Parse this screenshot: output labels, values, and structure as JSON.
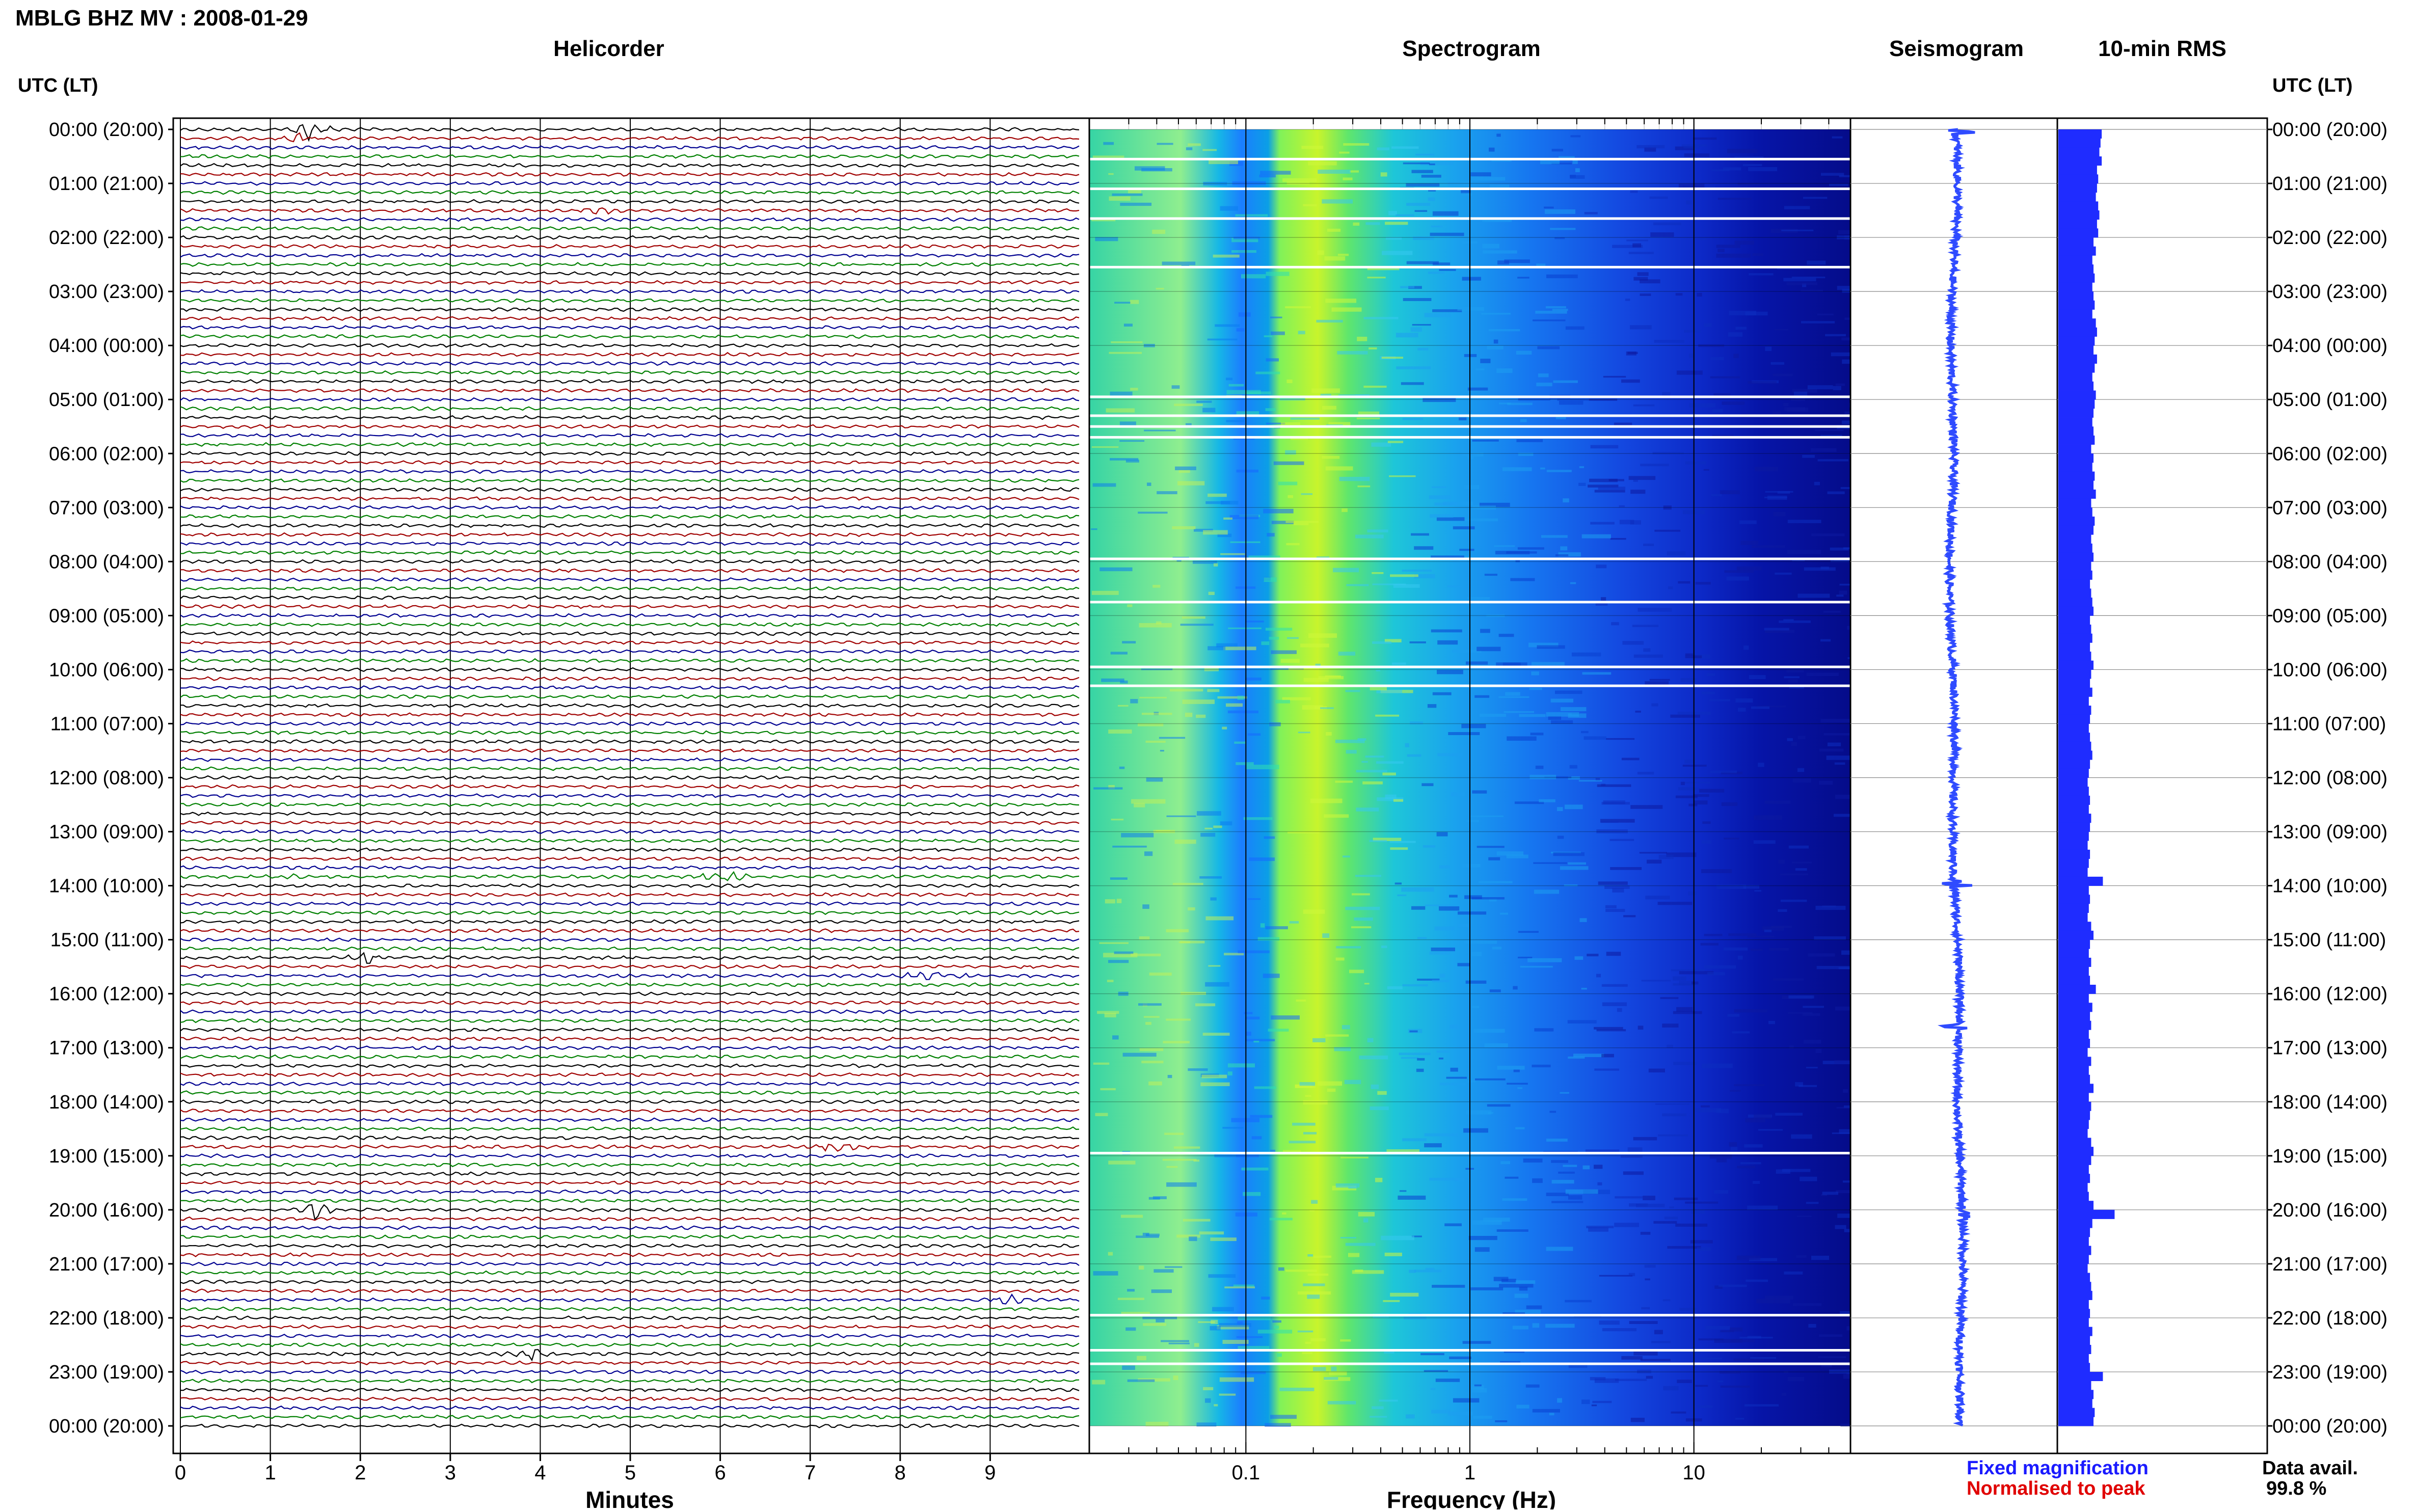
{
  "page": {
    "title": "MBLG BHZ MV : 2008-01-29",
    "utc_header": "UTC (LT)",
    "footer_fixed": "Fixed magnification",
    "footer_normalised": "Normalised to peak",
    "data_avail_label": "Data avail.",
    "data_avail_value": "99.8 %"
  },
  "colors": {
    "trace_cycle": [
      "#000000",
      "#a00000",
      "#000090",
      "#008000"
    ],
    "fixed_text": "#1a1aff",
    "normalised_text": "#e00000",
    "bar": "#1f2cff",
    "seis": "#2f4bff"
  },
  "chart_data": [
    {
      "type": "helicorder",
      "title": "Helicorder",
      "xlabel": "Minutes",
      "x_ticks": [
        "0",
        "1",
        "2",
        "3",
        "4",
        "5",
        "6",
        "7",
        "8",
        "9"
      ],
      "xlim": [
        0,
        10
      ],
      "y_ticks": [
        "00:00 (20:00)",
        "01:00 (21:00)",
        "02:00 (22:00)",
        "03:00 (23:00)",
        "04:00 (00:00)",
        "05:00 (01:00)",
        "06:00 (02:00)",
        "07:00 (03:00)",
        "08:00 (04:00)",
        "09:00 (05:00)",
        "10:00 (06:00)",
        "11:00 (07:00)",
        "12:00 (08:00)",
        "13:00 (09:00)",
        "14:00 (10:00)",
        "15:00 (11:00)",
        "16:00 (12:00)",
        "17:00 (13:00)",
        "18:00 (14:00)",
        "19:00 (15:00)",
        "20:00 (16:00)",
        "21:00 (17:00)",
        "22:00 (18:00)",
        "23:00 (19:00)",
        "00:00 (20:00)"
      ],
      "rows": 144,
      "events": [
        {
          "row": 0,
          "minute": 1.45,
          "amp": 5
        },
        {
          "row": 1,
          "minute": 1.3,
          "amp": 2
        },
        {
          "row": 9,
          "minute": 4.7,
          "amp": 2
        },
        {
          "row": 83,
          "minute": 1.2,
          "amp": 1.5
        },
        {
          "row": 83,
          "minute": 6.0,
          "amp": 6
        },
        {
          "row": 92,
          "minute": 2.05,
          "amp": 3
        },
        {
          "row": 94,
          "minute": 8.2,
          "amp": 2.5
        },
        {
          "row": 94,
          "minute": 8.5,
          "amp": 2
        },
        {
          "row": 113,
          "minute": 7.3,
          "amp": 3
        },
        {
          "row": 120,
          "minute": 1.5,
          "amp": 4
        },
        {
          "row": 130,
          "minute": 9.2,
          "amp": 2.5
        },
        {
          "row": 136,
          "minute": 3.9,
          "amp": 2.5
        }
      ]
    },
    {
      "type": "heatmap",
      "title": "Spectrogram",
      "xlabel": "Frequency (Hz)",
      "x_ticks": [
        "0.1",
        "1",
        "10"
      ],
      "x_scale": "log",
      "xlim": [
        0.02,
        50
      ],
      "y_range_hours": [
        0,
        24
      ],
      "data_gap_rows_hours": [
        0.55,
        1.1,
        1.65,
        2.55,
        4.95,
        5.3,
        5.5,
        5.7,
        7.95,
        8.75,
        9.95,
        10.3,
        18.95,
        21.95,
        22.6,
        22.85
      ]
    },
    {
      "type": "line",
      "title": "Seismogram",
      "y_range_hours": [
        0,
        24
      ],
      "spikes_hours": [
        0.05,
        13.95,
        14.0,
        16.6,
        20.1
      ]
    },
    {
      "type": "bar",
      "title": "10-min RMS",
      "orientation": "horizontal",
      "y_range_hours": [
        0,
        24
      ],
      "values": [
        37,
        36,
        35,
        37,
        33,
        34,
        33,
        32,
        34,
        35,
        33,
        34,
        30,
        32,
        29,
        30,
        31,
        29,
        30,
        31,
        29,
        32,
        33,
        31,
        30,
        33,
        31,
        29,
        30,
        32,
        31,
        30,
        29,
        30,
        31,
        28,
        30,
        29,
        31,
        30,
        32,
        28,
        29,
        31,
        30,
        28,
        29,
        30,
        28,
        29,
        27,
        28,
        29,
        30,
        27,
        28,
        29,
        27,
        28,
        30,
        28,
        27,
        29,
        26,
        28,
        27,
        26,
        27,
        28,
        29,
        27,
        26,
        25,
        26,
        27,
        26,
        28,
        27,
        26,
        25,
        27,
        26,
        25,
        38,
        26,
        27,
        26,
        25,
        28,
        30,
        27,
        26,
        28,
        26,
        27,
        32,
        26,
        29,
        27,
        28,
        26,
        27,
        25,
        28,
        26,
        27,
        30,
        26,
        28,
        27,
        26,
        25,
        28,
        30,
        28,
        26,
        27,
        25,
        26,
        30,
        48,
        29,
        27,
        26,
        28,
        26,
        25,
        27,
        28,
        29,
        26,
        27,
        26,
        29,
        27,
        28,
        26,
        27,
        38,
        28,
        30,
        29,
        31,
        30
      ]
    }
  ]
}
